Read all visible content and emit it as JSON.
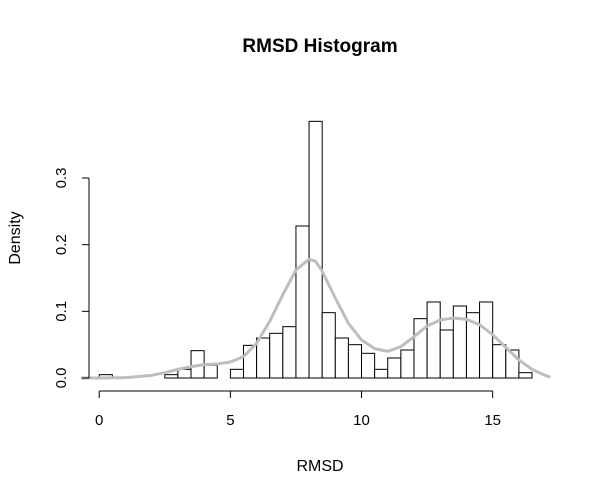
{
  "chart_data": {
    "type": "histogram",
    "title": "RMSD Histogram",
    "xlabel": "RMSD",
    "ylabel": "Density",
    "xlim": [
      -1,
      17.3
    ],
    "ylim": [
      -0.006,
      0.42
    ],
    "x_ticks": [
      0,
      5,
      10,
      15
    ],
    "x_tick_labels": [
      "0",
      "5",
      "10",
      "15"
    ],
    "y_ticks": [
      0.0,
      0.1,
      0.2,
      0.3
    ],
    "y_tick_labels": [
      "0.0",
      "0.1",
      "0.2",
      "0.3"
    ],
    "bin_width": 0.5,
    "bin_starts": [
      0.0,
      0.5,
      1.0,
      1.5,
      2.0,
      2.5,
      3.0,
      3.5,
      4.0,
      4.5,
      5.0,
      5.5,
      6.0,
      6.5,
      7.0,
      7.5,
      8.0,
      8.5,
      9.0,
      9.5,
      10.0,
      10.5,
      11.0,
      11.5,
      12.0,
      12.5,
      13.0,
      13.5,
      14.0,
      14.5,
      15.0,
      15.5,
      16.0
    ],
    "values": [
      0.005,
      0.0,
      0.0,
      0.0,
      0.0,
      0.005,
      0.013,
      0.041,
      0.019,
      0.0,
      0.013,
      0.049,
      0.06,
      0.067,
      0.077,
      0.228,
      0.385,
      0.098,
      0.06,
      0.05,
      0.037,
      0.013,
      0.03,
      0.042,
      0.089,
      0.114,
      0.072,
      0.108,
      0.098,
      0.114,
      0.05,
      0.042,
      0.008
    ],
    "density_curve": {
      "x": [
        -0.7,
        0.0,
        1.0,
        2.0,
        2.5,
        3.0,
        3.5,
        4.0,
        4.5,
        5.0,
        5.5,
        6.0,
        6.5,
        7.0,
        7.5,
        8.0,
        8.25,
        8.5,
        9.0,
        9.5,
        10.0,
        10.5,
        11.0,
        11.5,
        12.0,
        12.5,
        13.0,
        13.5,
        14.0,
        14.5,
        15.0,
        15.5,
        16.0,
        16.5,
        17.0,
        17.2
      ],
      "y": [
        0.0,
        0.0,
        0.0005,
        0.004,
        0.008,
        0.013,
        0.017,
        0.02,
        0.021,
        0.024,
        0.032,
        0.052,
        0.085,
        0.125,
        0.162,
        0.178,
        0.175,
        0.16,
        0.12,
        0.082,
        0.057,
        0.044,
        0.04,
        0.047,
        0.062,
        0.078,
        0.087,
        0.09,
        0.088,
        0.08,
        0.065,
        0.046,
        0.027,
        0.013,
        0.004,
        0.001
      ],
      "color": "#bebebe"
    }
  }
}
